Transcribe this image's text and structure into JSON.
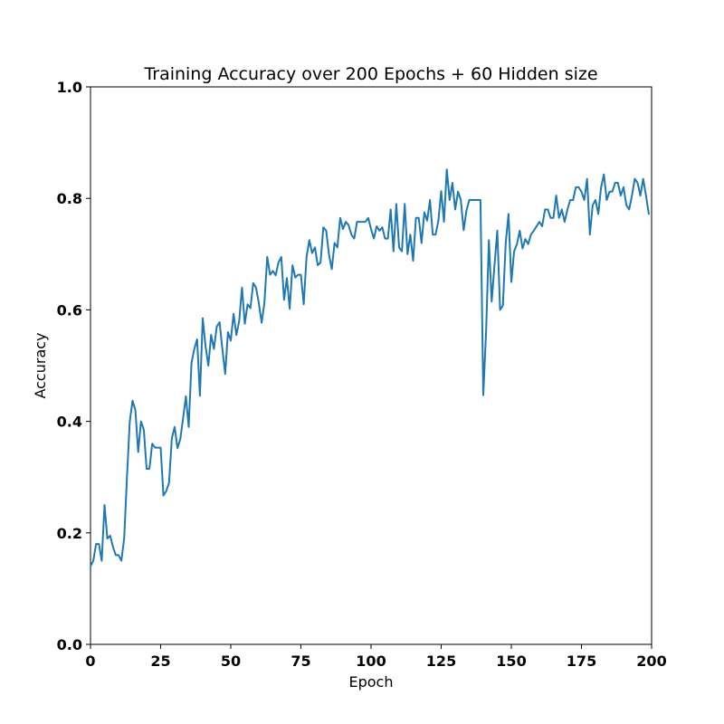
{
  "chart_data": {
    "type": "line",
    "title": "Training Accuracy over 200 Epochs + 60 Hidden size",
    "xlabel": "Epoch",
    "ylabel": "Accuracy",
    "xlim": [
      0,
      200
    ],
    "ylim": [
      0.0,
      1.0
    ],
    "xticks": [
      0,
      25,
      50,
      75,
      100,
      125,
      150,
      175,
      200
    ],
    "xtick_labels": [
      "0",
      "25",
      "50",
      "75",
      "100",
      "125",
      "150",
      "175",
      "200"
    ],
    "yticks": [
      0.0,
      0.2,
      0.4,
      0.6,
      0.8,
      1.0
    ],
    "ytick_labels": [
      "0.0",
      "0.2",
      "0.4",
      "0.6",
      "0.8",
      "1.0"
    ],
    "grid": false,
    "series_color": "#1f77b4",
    "x": [
      0,
      1,
      2,
      3,
      4,
      5,
      6,
      7,
      8,
      9,
      10,
      11,
      12,
      13,
      14,
      15,
      16,
      17,
      18,
      19,
      20,
      21,
      22,
      23,
      24,
      25,
      26,
      27,
      28,
      29,
      30,
      31,
      32,
      33,
      34,
      35,
      36,
      37,
      38,
      39,
      40,
      41,
      42,
      43,
      44,
      45,
      46,
      47,
      48,
      49,
      50,
      51,
      52,
      53,
      54,
      55,
      56,
      57,
      58,
      59,
      60,
      61,
      62,
      63,
      64,
      65,
      66,
      67,
      68,
      69,
      70,
      71,
      72,
      73,
      74,
      75,
      76,
      77,
      78,
      79,
      80,
      81,
      82,
      83,
      84,
      85,
      86,
      87,
      88,
      89,
      90,
      91,
      92,
      93,
      94,
      95,
      96,
      97,
      98,
      99,
      100,
      101,
      102,
      103,
      104,
      105,
      106,
      107,
      108,
      109,
      110,
      111,
      112,
      113,
      114,
      115,
      116,
      117,
      118,
      119,
      120,
      121,
      122,
      123,
      124,
      125,
      126,
      127,
      128,
      129,
      130,
      131,
      132,
      133,
      134,
      135,
      136,
      137,
      138,
      139,
      140,
      141,
      142,
      143,
      144,
      145,
      146,
      147,
      148,
      149,
      150,
      151,
      152,
      153,
      154,
      155,
      156,
      157,
      158,
      159,
      160,
      161,
      162,
      163,
      164,
      165,
      166,
      167,
      168,
      169,
      170,
      171,
      172,
      173,
      174,
      175,
      176,
      177,
      178,
      179,
      180,
      181,
      182,
      183,
      184,
      185,
      186,
      187,
      188,
      189,
      190,
      191,
      192,
      193,
      194,
      195,
      196,
      197,
      198,
      199
    ],
    "y": [
      0.14,
      0.15,
      0.18,
      0.18,
      0.15,
      0.25,
      0.19,
      0.195,
      0.175,
      0.16,
      0.16,
      0.15,
      0.19,
      0.3,
      0.4,
      0.437,
      0.42,
      0.345,
      0.4,
      0.385,
      0.315,
      0.315,
      0.36,
      0.353,
      0.353,
      0.353,
      0.267,
      0.275,
      0.29,
      0.37,
      0.39,
      0.352,
      0.368,
      0.405,
      0.445,
      0.39,
      0.505,
      0.53,
      0.547,
      0.446,
      0.585,
      0.535,
      0.5,
      0.555,
      0.53,
      0.57,
      0.578,
      0.53,
      0.485,
      0.56,
      0.545,
      0.593,
      0.555,
      0.58,
      0.64,
      0.575,
      0.61,
      0.603,
      0.648,
      0.64,
      0.612,
      0.577,
      0.613,
      0.695,
      0.663,
      0.67,
      0.662,
      0.685,
      0.695,
      0.618,
      0.657,
      0.602,
      0.68,
      0.658,
      0.663,
      0.663,
      0.61,
      0.695,
      0.725,
      0.702,
      0.712,
      0.68,
      0.685,
      0.748,
      0.742,
      0.7,
      0.673,
      0.72,
      0.712,
      0.765,
      0.745,
      0.758,
      0.752,
      0.735,
      0.728,
      0.758,
      0.758,
      0.758,
      0.758,
      0.765,
      0.745,
      0.728,
      0.75,
      0.742,
      0.748,
      0.728,
      0.728,
      0.78,
      0.705,
      0.79,
      0.712,
      0.705,
      0.79,
      0.7,
      0.735,
      0.688,
      0.765,
      0.765,
      0.72,
      0.775,
      0.76,
      0.797,
      0.735,
      0.735,
      0.76,
      0.813,
      0.758,
      0.852,
      0.797,
      0.828,
      0.78,
      0.812,
      0.797,
      0.743,
      0.778,
      0.797,
      0.797,
      0.797,
      0.797,
      0.797,
      0.447,
      0.56,
      0.725,
      0.615,
      0.68,
      0.742,
      0.6,
      0.608,
      0.72,
      0.772,
      0.65,
      0.705,
      0.718,
      0.742,
      0.71,
      0.727,
      0.718,
      0.735,
      0.742,
      0.75,
      0.758,
      0.75,
      0.78,
      0.78,
      0.765,
      0.765,
      0.805,
      0.765,
      0.78,
      0.758,
      0.78,
      0.797,
      0.797,
      0.82,
      0.82,
      0.812,
      0.797,
      0.835,
      0.735,
      0.788,
      0.797,
      0.772,
      0.82,
      0.843,
      0.797,
      0.812,
      0.812,
      0.828,
      0.828,
      0.805,
      0.82,
      0.788,
      0.78,
      0.805,
      0.835,
      0.828,
      0.805,
      0.835,
      0.805,
      0.772
    ]
  }
}
